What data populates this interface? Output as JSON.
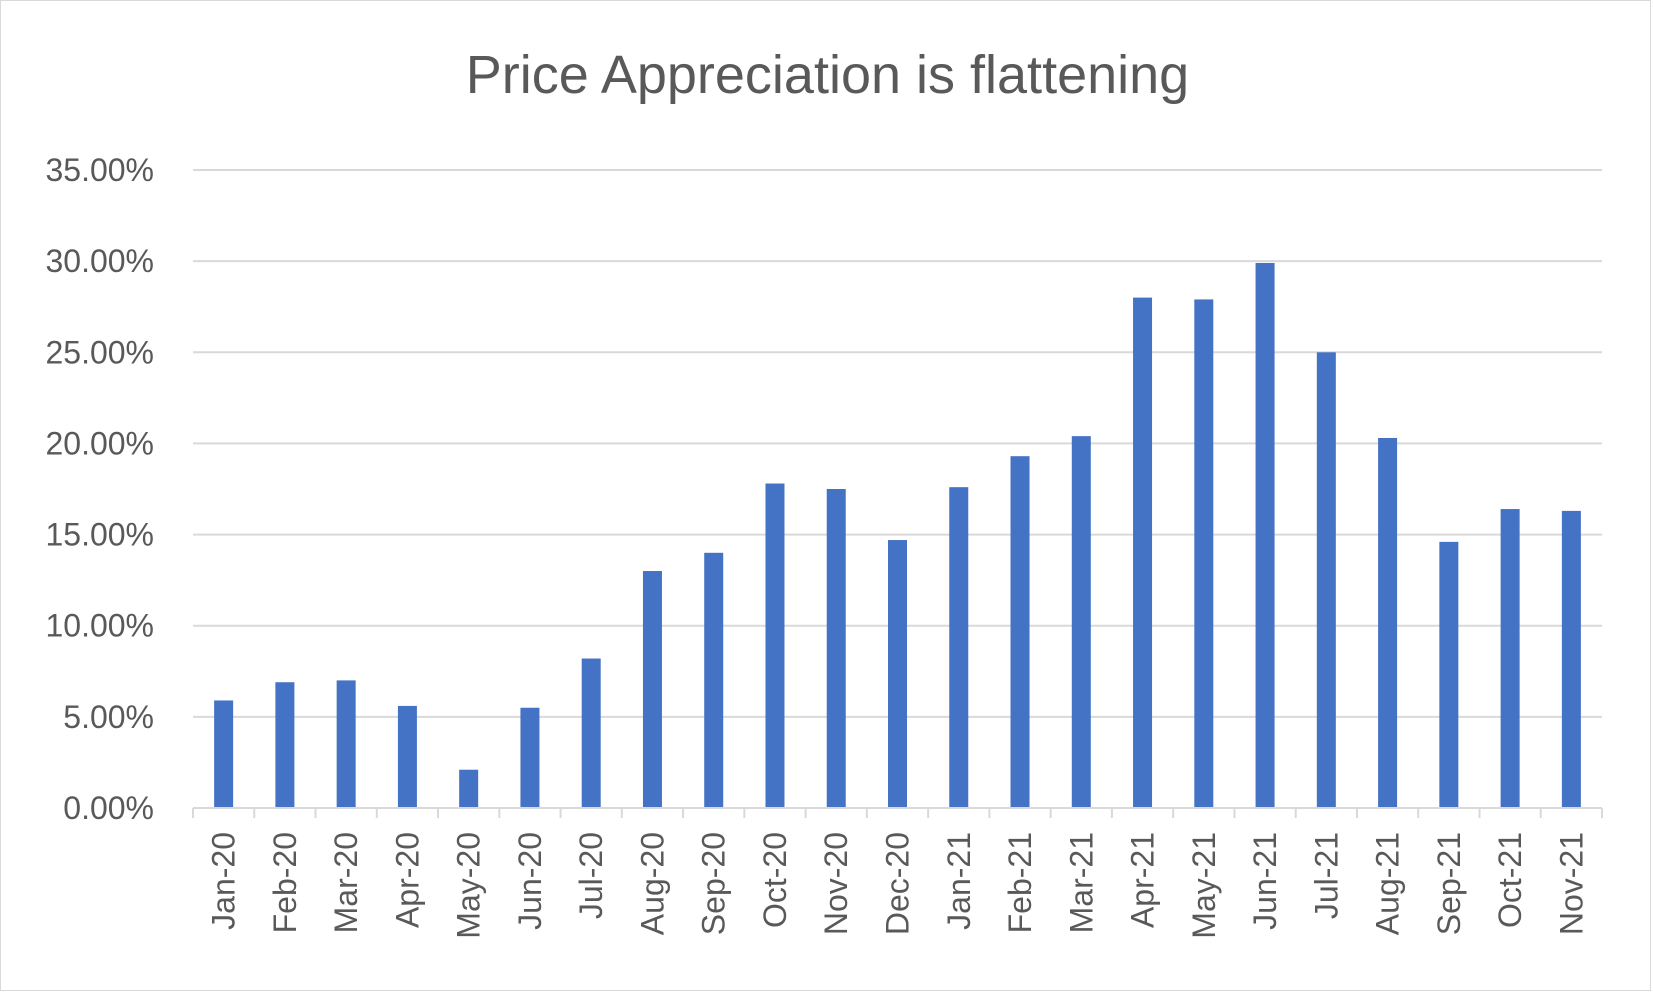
{
  "chart_data": {
    "type": "bar",
    "title": "Price Appreciation is flattening",
    "xlabel": "",
    "ylabel": "",
    "ylim": [
      0,
      35
    ],
    "y_ticks": [
      "0.00%",
      "5.00%",
      "10.00%",
      "15.00%",
      "20.00%",
      "25.00%",
      "30.00%",
      "35.00%"
    ],
    "grid": true,
    "bar_color": "#4472C4",
    "categories": [
      "Jan-20",
      "Feb-20",
      "Mar-20",
      "Apr-20",
      "May-20",
      "Jun-20",
      "Jul-20",
      "Aug-20",
      "Sep-20",
      "Oct-20",
      "Nov-20",
      "Dec-20",
      "Jan-21",
      "Feb-21",
      "Mar-21",
      "Apr-21",
      "May-21",
      "Jun-21",
      "Jul-21",
      "Aug-21",
      "Sep-21",
      "Oct-21",
      "Nov-21"
    ],
    "values": [
      5.9,
      6.9,
      7.0,
      5.6,
      2.1,
      5.5,
      8.2,
      13.0,
      14.0,
      17.8,
      17.5,
      14.7,
      17.6,
      19.3,
      20.4,
      28.0,
      27.9,
      29.9,
      25.0,
      20.3,
      14.6,
      16.4,
      16.3
    ]
  }
}
